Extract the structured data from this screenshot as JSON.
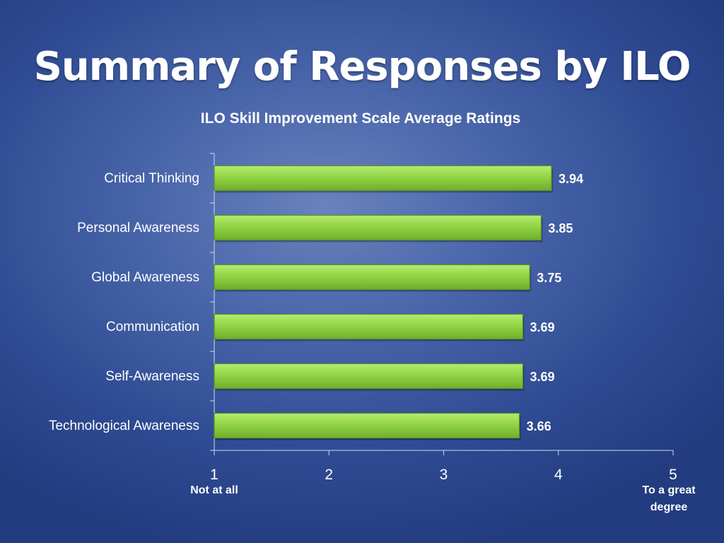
{
  "slide": {
    "title": "Summary of Responses by ILO"
  },
  "chart_data": {
    "type": "bar",
    "orientation": "horizontal",
    "title": "ILO Skill Improvement Scale Average Ratings",
    "categories": [
      "Critical Thinking",
      "Personal Awareness",
      "Global Awareness",
      "Communication",
      "Self-Awareness",
      "Technological Awareness"
    ],
    "values": [
      3.94,
      3.85,
      3.75,
      3.69,
      3.69,
      3.66
    ],
    "data_labels": [
      "3.94",
      "3.85",
      "3.75",
      "3.69",
      "3.69",
      "3.66"
    ],
    "xlim": [
      1,
      5
    ],
    "x_ticks": [
      "1",
      "2",
      "3",
      "4",
      "5"
    ],
    "x_anchor_labels": {
      "low": "Not at all",
      "high_line1": "To a great",
      "high_line2": "degree"
    },
    "grid": false,
    "bar_color": "#8ed13f",
    "bar_border_color": "#5f8f26",
    "text_color": "#ffffff"
  }
}
